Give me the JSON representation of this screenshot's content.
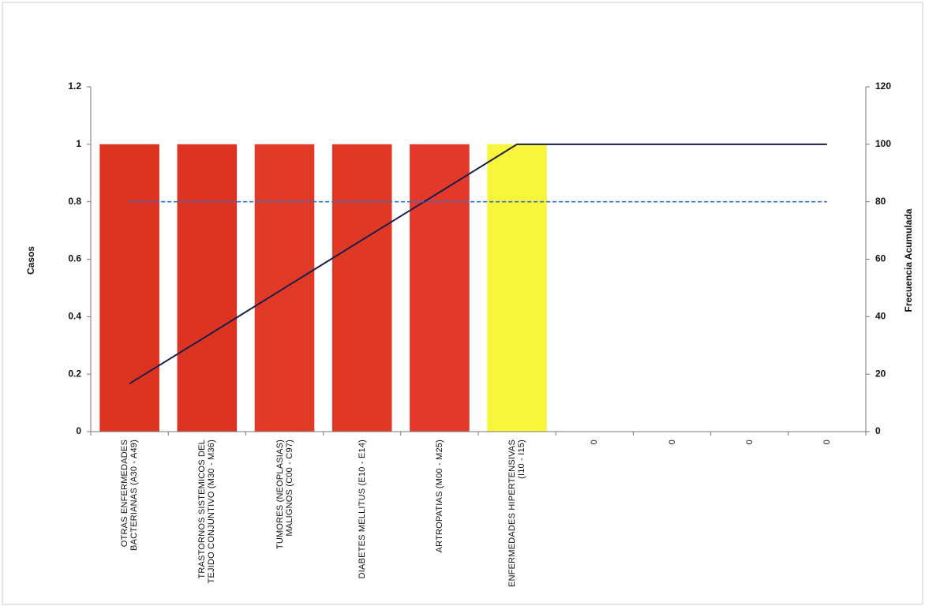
{
  "chart_data": {
    "type": "bar",
    "categories": [
      "OTRAS ENFERMEDADES BACTERIANAS (A30 - A49)",
      "TRASTORNOS SISTEMICOS DEL TEJIDO CONJUNTIVO (M30 - M36)",
      "TUMORES (NEOPLASIAS) MALIGNOS (C00 - C97)",
      "DIABETES MELLITUS (E10 - E14)",
      "ARTROPATIAS (M00 - M25)",
      "ENFERMEDADES HIPERTENSIVAS (I10 - I15)",
      "0",
      "0",
      "0",
      "0"
    ],
    "series": [
      {
        "values": [
          1,
          1,
          1,
          1,
          1,
          1,
          0,
          0,
          0,
          0
        ],
        "colors": [
          "#dc3220",
          "#dd3422",
          "#e03a27",
          "#df3825",
          "#e2392a",
          "#f7f53c",
          "#e2392a",
          "#e2392a",
          "#e2392a",
          "#e2392a"
        ]
      },
      {
        "axis": "y2",
        "values": [
          16.7,
          33.3,
          50,
          66.7,
          83.3,
          100,
          100,
          100,
          100,
          100
        ],
        "color": "#1a1f4a"
      },
      {
        "axis": "y2",
        "values": [
          80,
          80,
          80,
          80,
          80,
          80,
          80,
          80,
          80,
          80
        ],
        "color": "#2f6ccc",
        "dashed": true
      }
    ],
    "y_label": "Casos",
    "y2_label": "Frecuencia Acumulada",
    "ylim": [
      0,
      1.2
    ],
    "yticks": [
      0,
      0.2,
      0.4,
      0.6,
      0.8,
      1,
      1.2
    ],
    "y2lim": [
      0,
      120
    ],
    "y2ticks": [
      0,
      20,
      40,
      60,
      80,
      100,
      120
    ]
  }
}
